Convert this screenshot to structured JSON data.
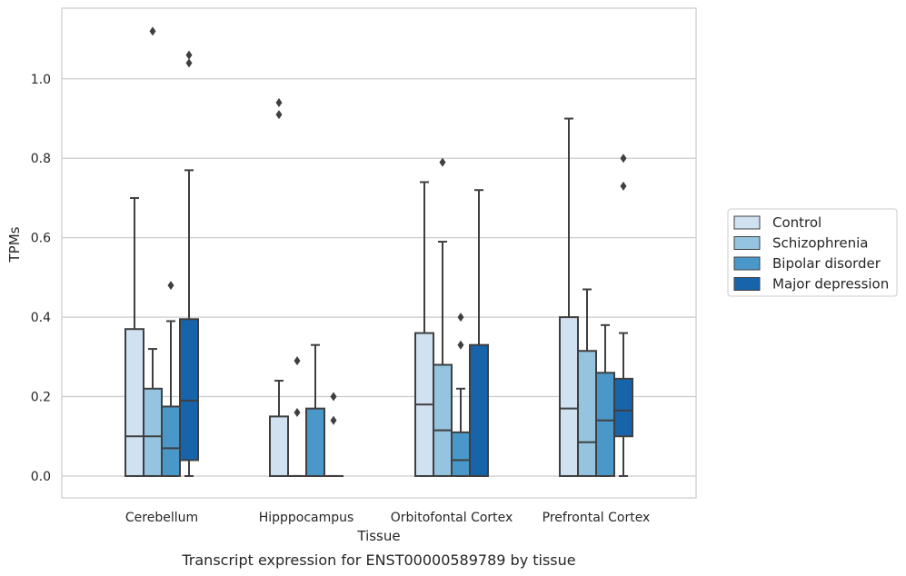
{
  "caption": "Transcript expression for ENST00000589789 by tissue",
  "chart_data": {
    "type": "boxplot",
    "xlabel": "Tissue",
    "ylabel": "TPMs",
    "ylim": [
      -0.055,
      1.178
    ],
    "yticks": [
      0.0,
      0.2,
      0.4,
      0.6,
      0.8,
      1.0
    ],
    "ytick_labels": [
      "0.0",
      "0.2",
      "0.4",
      "0.6",
      "0.8",
      "1.0"
    ],
    "grid": "horizontal",
    "legend_position": "right",
    "categories": [
      "Cerebellum",
      "Hipppocampus",
      "Orbitofontal Cortex",
      "Prefrontal Cortex"
    ],
    "series": [
      {
        "name": "Control",
        "color": "#d0e1f2",
        "boxes": [
          {
            "whislo": 0.0,
            "q1": 0.0,
            "med": 0.1,
            "q3": 0.37,
            "whishi": 0.7,
            "fliers": []
          },
          {
            "whislo": 0.0,
            "q1": 0.0,
            "med": 0.0,
            "q3": 0.15,
            "whishi": 0.24,
            "fliers": [
              0.91,
              0.94
            ]
          },
          {
            "whislo": 0.0,
            "q1": 0.0,
            "med": 0.18,
            "q3": 0.36,
            "whishi": 0.74,
            "fliers": []
          },
          {
            "whislo": 0.0,
            "q1": 0.0,
            "med": 0.17,
            "q3": 0.4,
            "whishi": 0.9,
            "fliers": []
          }
        ]
      },
      {
        "name": "Schizophrenia",
        "color": "#94c4df",
        "boxes": [
          {
            "whislo": 0.0,
            "q1": 0.0,
            "med": 0.1,
            "q3": 0.22,
            "whishi": 0.32,
            "fliers": [
              1.12
            ]
          },
          {
            "whislo": 0.0,
            "q1": 0.0,
            "med": 0.0,
            "q3": 0.0,
            "whishi": 0.0,
            "fliers": [
              0.16,
              0.29
            ]
          },
          {
            "whislo": 0.0,
            "q1": 0.0,
            "med": 0.115,
            "q3": 0.28,
            "whishi": 0.59,
            "fliers": [
              0.79
            ]
          },
          {
            "whislo": 0.0,
            "q1": 0.0,
            "med": 0.085,
            "q3": 0.315,
            "whishi": 0.47,
            "fliers": []
          }
        ]
      },
      {
        "name": "Bipolar disorder",
        "color": "#4a98c9",
        "boxes": [
          {
            "whislo": 0.0,
            "q1": 0.0,
            "med": 0.07,
            "q3": 0.175,
            "whishi": 0.39,
            "fliers": [
              0.48
            ]
          },
          {
            "whislo": 0.0,
            "q1": 0.0,
            "med": 0.0,
            "q3": 0.17,
            "whishi": 0.33,
            "fliers": []
          },
          {
            "whislo": 0.0,
            "q1": 0.0,
            "med": 0.04,
            "q3": 0.11,
            "whishi": 0.22,
            "fliers": [
              0.33,
              0.4
            ]
          },
          {
            "whislo": 0.0,
            "q1": 0.0,
            "med": 0.14,
            "q3": 0.26,
            "whishi": 0.38,
            "fliers": []
          }
        ]
      },
      {
        "name": "Major depression",
        "color": "#1764ab",
        "boxes": [
          {
            "whislo": 0.0,
            "q1": 0.04,
            "med": 0.19,
            "q3": 0.395,
            "whishi": 0.77,
            "fliers": [
              1.04,
              1.06
            ]
          },
          {
            "whislo": 0.0,
            "q1": 0.0,
            "med": 0.0,
            "q3": 0.0,
            "whishi": 0.0,
            "fliers": [
              0.14,
              0.2
            ]
          },
          {
            "whislo": 0.0,
            "q1": 0.0,
            "med": 0.0,
            "q3": 0.33,
            "whishi": 0.72,
            "fliers": []
          },
          {
            "whislo": 0.0,
            "q1": 0.1,
            "med": 0.165,
            "q3": 0.245,
            "whishi": 0.36,
            "fliers": [
              0.73,
              0.8
            ]
          }
        ]
      }
    ]
  }
}
